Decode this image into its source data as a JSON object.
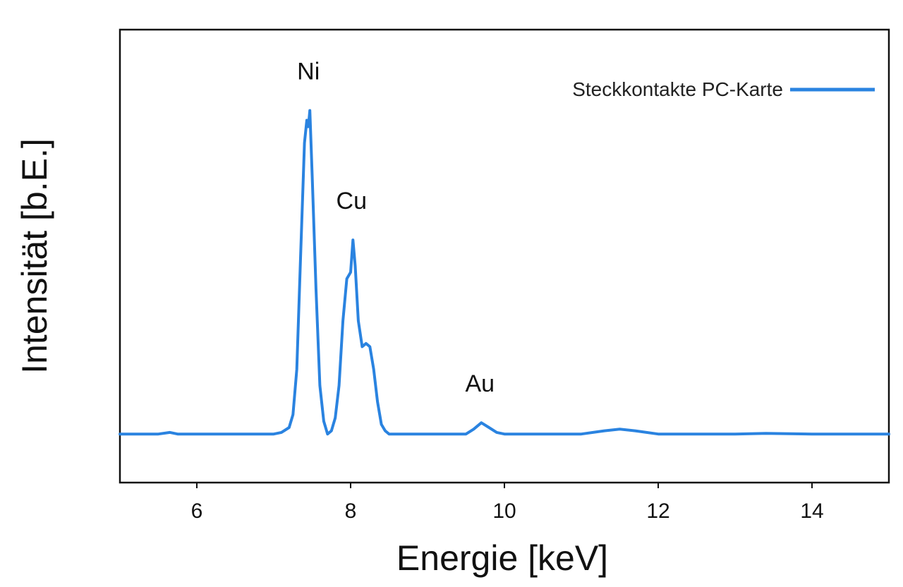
{
  "chart_data": {
    "type": "line",
    "xlabel": "Energie [keV]",
    "ylabel": "Intensität [b.E.]",
    "xlim": [
      5,
      15
    ],
    "ylim": [
      -0.15,
      1.25
    ],
    "xticks": [
      "6",
      "8",
      "10",
      "12",
      "14"
    ],
    "legend_position": "top-right",
    "grid": false,
    "series": [
      {
        "name": "Steckkontakte PC-Karte",
        "color": "#2a83e0",
        "x": [
          5.0,
          5.5,
          5.65,
          5.75,
          6.0,
          6.5,
          7.0,
          7.1,
          7.2,
          7.25,
          7.3,
          7.35,
          7.4,
          7.43,
          7.45,
          7.47,
          7.5,
          7.55,
          7.6,
          7.65,
          7.7,
          7.75,
          7.8,
          7.85,
          7.9,
          7.95,
          8.0,
          8.03,
          8.06,
          8.1,
          8.15,
          8.2,
          8.25,
          8.3,
          8.35,
          8.4,
          8.45,
          8.5,
          8.6,
          9.0,
          9.5,
          9.6,
          9.7,
          9.8,
          9.9,
          10.0,
          10.5,
          11.0,
          11.3,
          11.5,
          11.7,
          12.0,
          12.5,
          13.0,
          13.4,
          14.0,
          14.5,
          15.0
        ],
        "y": [
          0.0,
          0.0,
          0.005,
          0.0,
          0.0,
          0.0,
          0.0,
          0.005,
          0.02,
          0.06,
          0.2,
          0.55,
          0.9,
          0.97,
          0.95,
          1.0,
          0.8,
          0.45,
          0.15,
          0.04,
          0.0,
          0.01,
          0.05,
          0.15,
          0.35,
          0.48,
          0.5,
          0.6,
          0.52,
          0.35,
          0.27,
          0.28,
          0.27,
          0.2,
          0.1,
          0.03,
          0.01,
          0.0,
          0.0,
          0.0,
          0.0,
          0.015,
          0.035,
          0.02,
          0.005,
          0.0,
          0.0,
          0.0,
          0.01,
          0.015,
          0.01,
          0.0,
          0.0,
          0.0,
          0.002,
          0.0,
          0.0,
          0.0
        ]
      }
    ],
    "annotations": [
      {
        "text": "Ni",
        "x": 7.47,
        "y": 1.0
      },
      {
        "text": "Cu",
        "x": 8.03,
        "y": 0.6
      },
      {
        "text": "Au",
        "x": 9.7,
        "y": 0.035
      }
    ]
  }
}
